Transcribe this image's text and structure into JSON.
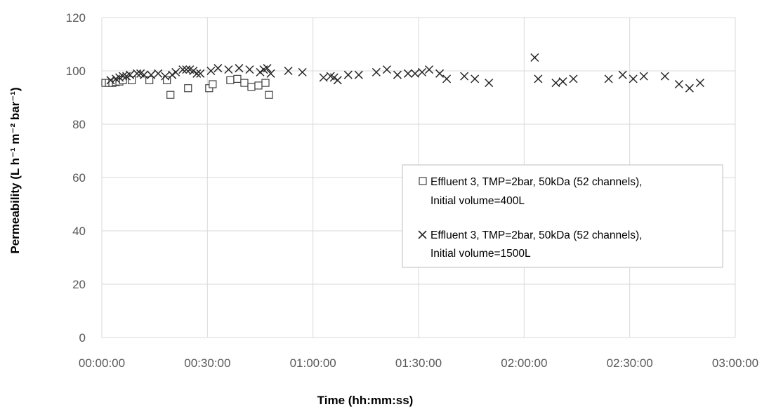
{
  "chart_data": {
    "type": "scatter",
    "title": "",
    "xlabel": "Time (hh:mm:ss)",
    "ylabel": "Permeability (L h⁻¹ m⁻² bar⁻¹)",
    "x_unit": "minutes",
    "xlim": [
      0,
      180
    ],
    "ylim": [
      0,
      120
    ],
    "x_ticks": [
      0,
      30,
      60,
      90,
      120,
      150,
      180
    ],
    "x_tick_labels": [
      "00:00:00",
      "00:30:00",
      "01:00:00",
      "01:30:00",
      "02:00:00",
      "02:30:00",
      "03:00:00"
    ],
    "y_ticks": [
      0,
      20,
      40,
      60,
      80,
      100,
      120
    ],
    "y_tick_labels": [
      "0",
      "20",
      "40",
      "60",
      "80",
      "100",
      "120"
    ],
    "grid": true,
    "legend_position": "right-center",
    "series": [
      {
        "name": "Effluent 3, TMP=2bar, 50kDa (52 channels), Initial volume=400L",
        "marker": "square",
        "color": "#404040",
        "points": [
          [
            1,
            95.5
          ],
          [
            2,
            95.5
          ],
          [
            3,
            95.5
          ],
          [
            4,
            95.8
          ],
          [
            5,
            96.0
          ],
          [
            6,
            96.5
          ],
          [
            8.5,
            96.5
          ],
          [
            13.5,
            96.5
          ],
          [
            18.5,
            96.5
          ],
          [
            19.5,
            91.0
          ],
          [
            24.5,
            93.5
          ],
          [
            30.5,
            93.5
          ],
          [
            31.5,
            95.0
          ],
          [
            36.5,
            96.5
          ],
          [
            38.5,
            97.0
          ],
          [
            40.5,
            95.5
          ],
          [
            42.5,
            94.0
          ],
          [
            44.5,
            94.5
          ],
          [
            46.5,
            95.5
          ],
          [
            47.5,
            91.0
          ]
        ]
      },
      {
        "name": "Effluent 3, TMP=2bar, 50kDa (52 channels), Initial volume=1500L",
        "marker": "x",
        "color": "#262626",
        "points": [
          [
            2.5,
            96.5
          ],
          [
            4,
            97.0
          ],
          [
            5,
            97.5
          ],
          [
            6,
            98.0
          ],
          [
            7,
            98.0
          ],
          [
            8,
            98.5
          ],
          [
            10,
            99.0
          ],
          [
            11,
            99.0
          ],
          [
            12,
            98.5
          ],
          [
            14,
            98.5
          ],
          [
            16,
            99.0
          ],
          [
            18,
            98.0
          ],
          [
            20,
            98.5
          ],
          [
            21,
            99.5
          ],
          [
            23,
            100.5
          ],
          [
            24,
            100.5
          ],
          [
            25,
            100.5
          ],
          [
            26,
            100.0
          ],
          [
            27,
            99.0
          ],
          [
            28,
            99.0
          ],
          [
            31,
            100.0
          ],
          [
            33,
            101.0
          ],
          [
            36,
            100.5
          ],
          [
            39,
            101.0
          ],
          [
            42,
            100.5
          ],
          [
            45,
            99.5
          ],
          [
            46,
            100.5
          ],
          [
            47,
            101.0
          ],
          [
            48,
            99.0
          ],
          [
            53,
            100.0
          ],
          [
            57,
            99.5
          ],
          [
            63,
            97.5
          ],
          [
            65,
            98.0
          ],
          [
            66,
            97.5
          ],
          [
            67,
            96.5
          ],
          [
            70,
            98.5
          ],
          [
            73,
            98.5
          ],
          [
            78,
            99.5
          ],
          [
            81,
            100.5
          ],
          [
            84,
            98.5
          ],
          [
            87,
            99.0
          ],
          [
            89,
            99.0
          ],
          [
            91,
            99.5
          ],
          [
            93,
            100.5
          ],
          [
            96,
            99.0
          ],
          [
            98,
            97.0
          ],
          [
            103,
            98.0
          ],
          [
            106,
            97.0
          ],
          [
            110,
            95.5
          ],
          [
            123,
            105.0
          ],
          [
            124,
            97.0
          ],
          [
            129,
            95.5
          ],
          [
            131,
            96.0
          ],
          [
            134,
            97.0
          ],
          [
            144,
            97.0
          ],
          [
            148,
            98.5
          ],
          [
            151,
            97.0
          ],
          [
            154,
            98.0
          ],
          [
            160,
            98.0
          ],
          [
            164,
            95.0
          ],
          [
            167,
            93.5
          ],
          [
            170,
            95.5
          ]
        ]
      }
    ]
  },
  "legend": {
    "series1_line1": "Effluent 3, TMP=2bar, 50kDa (52 channels),",
    "series1_line2": "Initial volume=400L",
    "series2_line1": "Effluent 3, TMP=2bar, 50kDa (52 channels),",
    "series2_line2": "Initial volume=1500L"
  },
  "colors": {
    "grid": "#d9d9d9",
    "tick_text": "#595959",
    "legend_border": "#bfbfbf"
  }
}
